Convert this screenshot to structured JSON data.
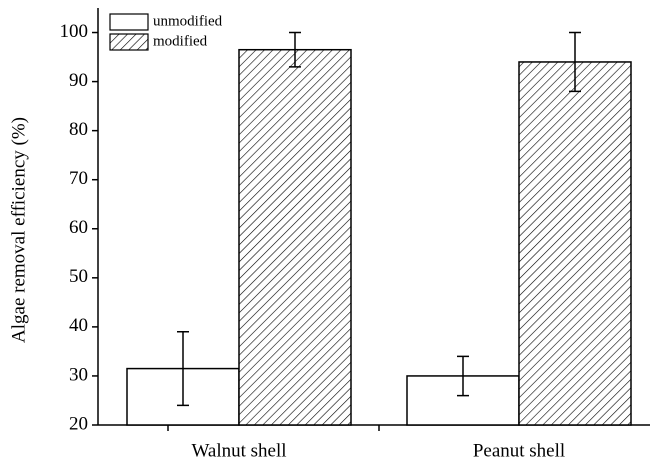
{
  "chart_data": {
    "type": "bar",
    "ylabel": "Algae removal efficiency (%)",
    "categories": [
      "Walnut shell",
      "Peanut shell"
    ],
    "series": [
      {
        "name": "unmodified",
        "color": "#ffffff",
        "values": [
          31.5,
          30
        ],
        "errors": [
          7.5,
          4
        ]
      },
      {
        "name": "modified",
        "color": "#ffffff",
        "hatch": true,
        "values": [
          96.5,
          94
        ],
        "errors": [
          3.5,
          6
        ]
      }
    ],
    "ylim": [
      20,
      105
    ],
    "yticks": [
      20,
      30,
      40,
      50,
      60,
      70,
      80,
      90,
      100
    ],
    "legend": "upper left"
  }
}
